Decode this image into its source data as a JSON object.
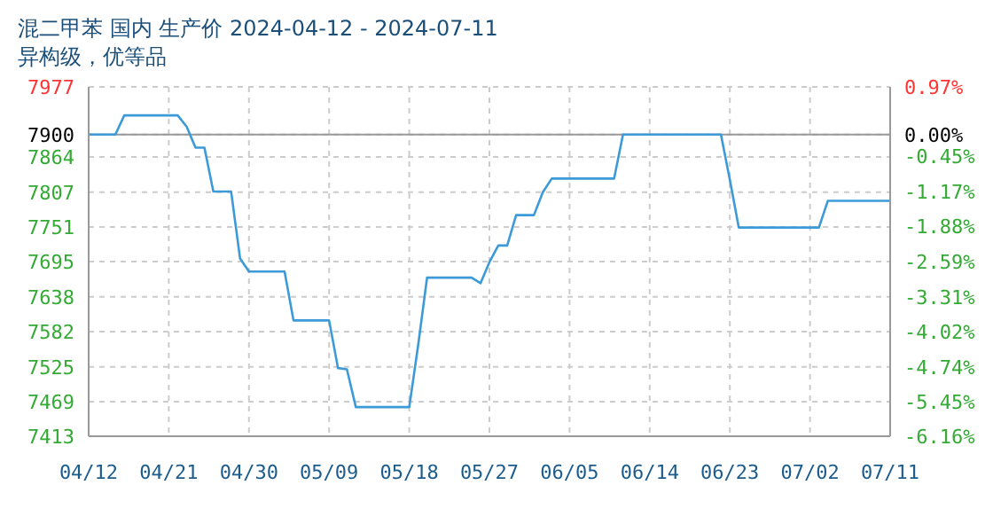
{
  "chart_data": {
    "type": "line",
    "title": "混二甲苯 国内 生产价 2024-04-12 - 2024-07-11",
    "subtitle": "异构级，优等品",
    "x": [
      "2024-04-12",
      "2024-04-15",
      "2024-04-16",
      "2024-04-22",
      "2024-04-23",
      "2024-04-24",
      "2024-04-25",
      "2024-04-26",
      "2024-04-28",
      "2024-04-29",
      "2024-04-30",
      "2024-05-04",
      "2024-05-05",
      "2024-05-09",
      "2024-05-10",
      "2024-05-11",
      "2024-05-12",
      "2024-05-18",
      "2024-05-19",
      "2024-05-20",
      "2024-05-25",
      "2024-05-26",
      "2024-05-27",
      "2024-05-28",
      "2024-05-29",
      "2024-05-30",
      "2024-06-01",
      "2024-06-02",
      "2024-06-03",
      "2024-06-10",
      "2024-06-11",
      "2024-06-22",
      "2024-06-23",
      "2024-06-24",
      "2024-07-03",
      "2024-07-04",
      "2024-07-11"
    ],
    "series": [
      {
        "color": "#3d9ad8",
        "values": [
          7900,
          7900,
          7931,
          7931,
          7913,
          7879,
          7879,
          7808,
          7808,
          7700,
          7679,
          7679,
          7600,
          7600,
          7523,
          7521,
          7460,
          7460,
          7560,
          7669,
          7669,
          7660,
          7694,
          7721,
          7721,
          7770,
          7770,
          7807,
          7829,
          7829,
          7900,
          7900,
          7827,
          7750,
          7750,
          7793,
          7793
        ]
      }
    ],
    "xlim": [
      "2024-04-12",
      "2024-07-11"
    ],
    "xticks": [
      {
        "value": "2024-04-12",
        "label": "04/12"
      },
      {
        "value": "2024-04-21",
        "label": "04/21"
      },
      {
        "value": "2024-04-30",
        "label": "04/30"
      },
      {
        "value": "2024-05-09",
        "label": "05/09"
      },
      {
        "value": "2024-05-18",
        "label": "05/18"
      },
      {
        "value": "2024-05-27",
        "label": "05/27"
      },
      {
        "value": "2024-06-05",
        "label": "06/05"
      },
      {
        "value": "2024-06-14",
        "label": "06/14"
      },
      {
        "value": "2024-06-23",
        "label": "06/23"
      },
      {
        "value": "2024-07-02",
        "label": "07/02"
      },
      {
        "value": "2024-07-11",
        "label": "07/11"
      }
    ],
    "ylim": [
      7413,
      7977
    ],
    "yticks": [
      7413,
      7469,
      7525,
      7582,
      7638,
      7695,
      7751,
      7807,
      7864,
      7900,
      7977
    ],
    "y2lim": [
      -6.16,
      0.97
    ],
    "y2ticks": [
      {
        "value": -6.16,
        "label": "-6.16%"
      },
      {
        "value": -5.45,
        "label": "-5.45%"
      },
      {
        "value": -4.74,
        "label": "-4.74%"
      },
      {
        "value": -4.02,
        "label": "-4.02%"
      },
      {
        "value": -3.31,
        "label": "-3.31%"
      },
      {
        "value": -2.59,
        "label": "-2.59%"
      },
      {
        "value": -1.88,
        "label": "-1.88%"
      },
      {
        "value": -1.17,
        "label": "-1.17%"
      },
      {
        "value": -0.45,
        "label": "-0.45%"
      },
      {
        "value": 0,
        "label": "0.00%"
      },
      {
        "value": 0.97,
        "label": "0.97%"
      }
    ],
    "ref_lines": [
      {
        "axis": "y",
        "value": 7900,
        "color": "#999999"
      }
    ],
    "grid": true,
    "marker": "none",
    "line_style": "solid"
  }
}
